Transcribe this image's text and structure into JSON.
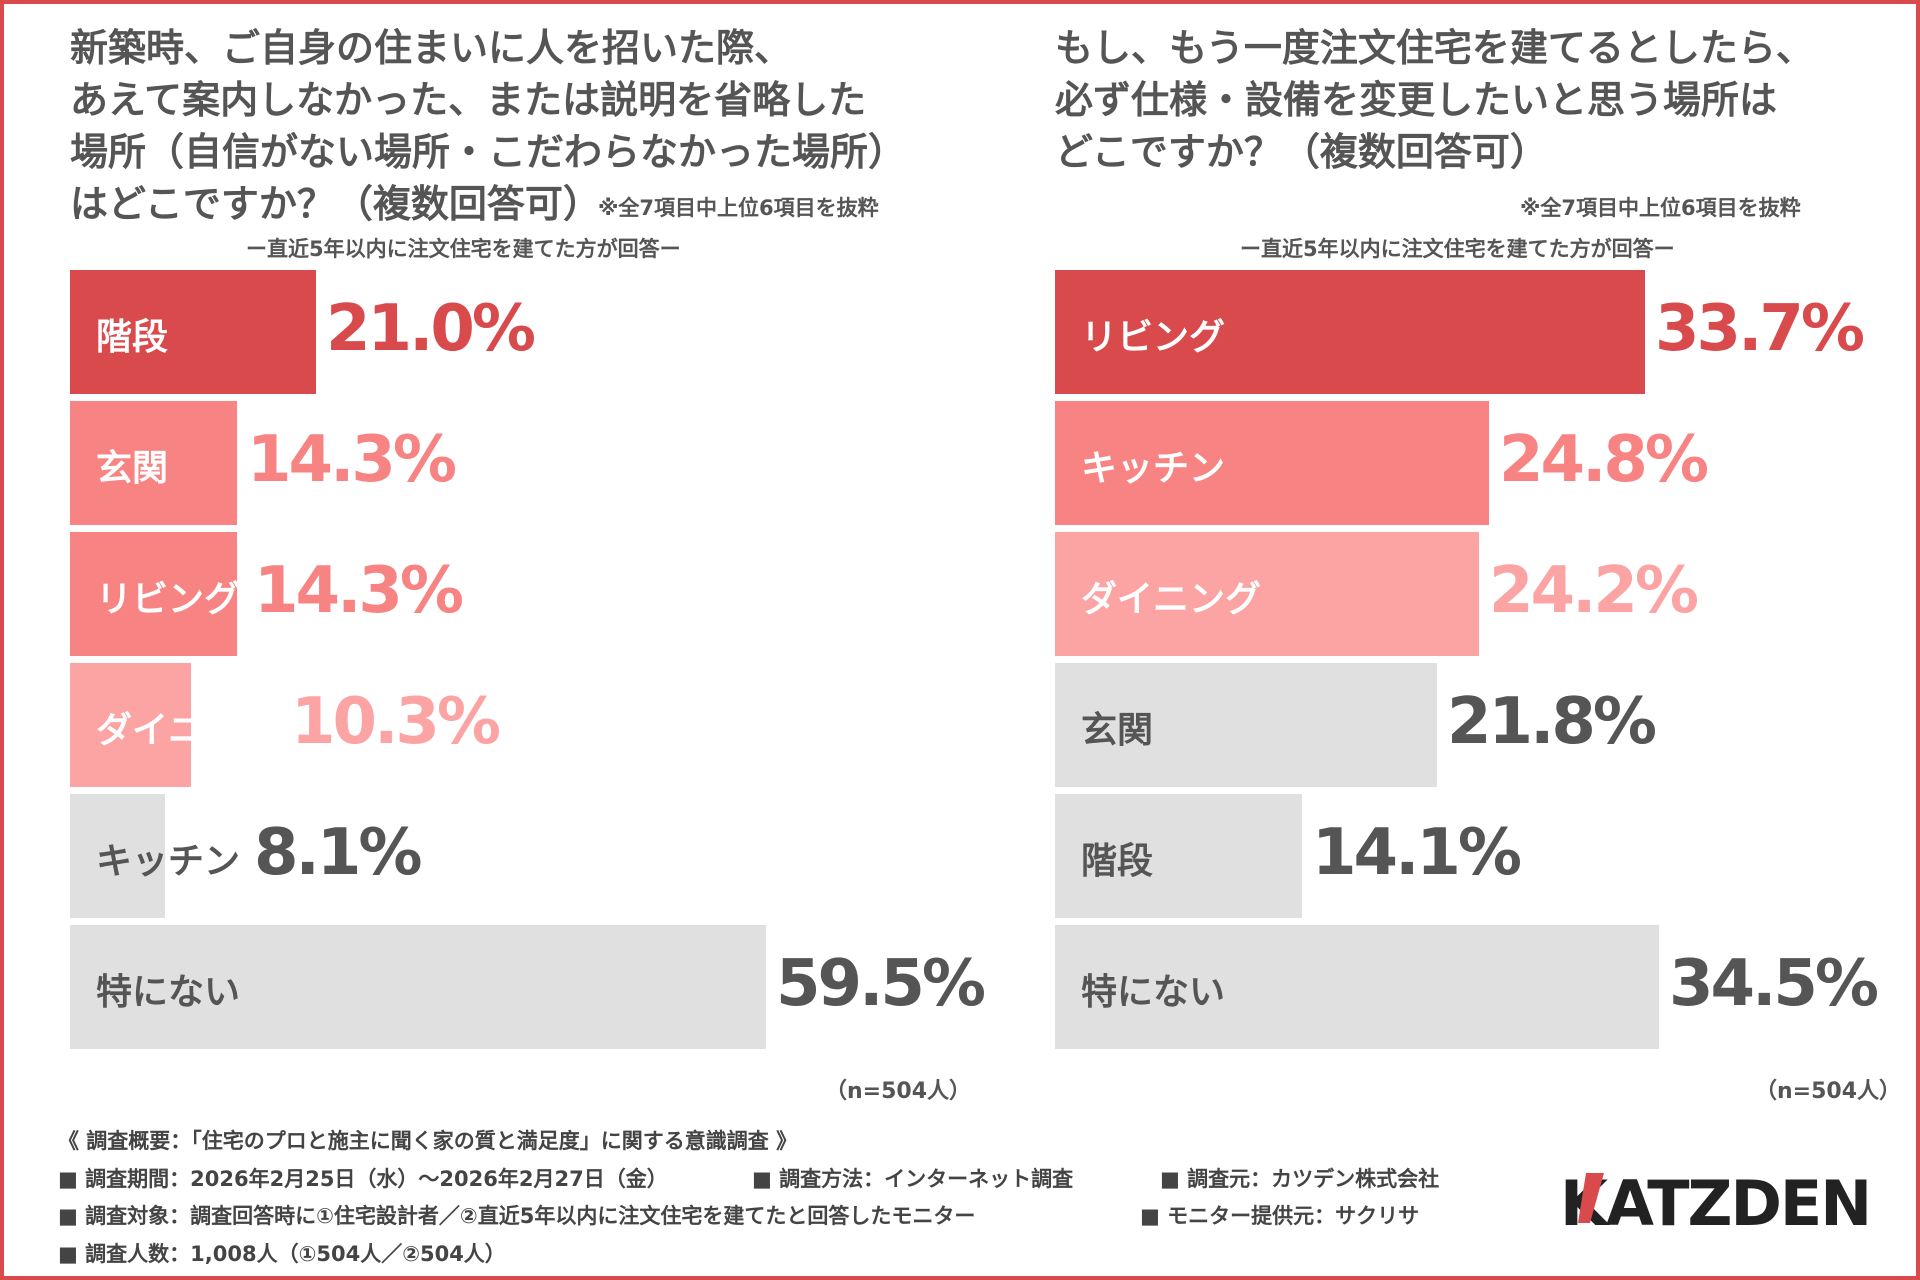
{
  "colors": {
    "border": "#d94a4d",
    "rank1": "#d94a4d",
    "rank2": "#f88383",
    "rank3": "#fca4a4",
    "gray_bar": "#e0e0e0",
    "gray_text": "#555555"
  },
  "left_panel": {
    "title": "新築時、ご自身の住まいに人を招いた際、\nあえて案内しなかった、または説明を省略した\n場所（自信がない場所・こだわらなかった場所）\nはどこですか？（複数回答可）",
    "note": "※全7項目中上位6項目を抜粋",
    "subtitle": "ー直近5年以内に注文住宅を建てた方が回答ー",
    "n": "（n=504人）"
  },
  "right_panel": {
    "title": "もし、もう一度注文住宅を建てるとしたら、\n必ず仕様・設備を変更したいと思う場所は\nどこですか？（複数回答可）",
    "note": "※全7項目中上位6項目を抜粋",
    "subtitle": "ー直近5年以内に注文住宅を建てた方が回答ー",
    "n": "（n=504人）"
  },
  "chart_data": [
    {
      "type": "bar",
      "orientation": "horizontal",
      "categories": [
        "階段",
        "玄関",
        "リビング",
        "ダイニング",
        "キッチン",
        "特にない"
      ],
      "values": [
        21.0,
        14.3,
        14.3,
        10.3,
        8.1,
        59.5
      ],
      "value_labels": [
        "21.0%",
        "14.3%",
        "14.3%",
        "10.3%",
        "8.1%",
        "59.5%"
      ],
      "bar_colors": [
        "#d94a4d",
        "#f88383",
        "#f88383",
        "#fca4a4",
        "#e0e0e0",
        "#e0e0e0"
      ],
      "value_colors": [
        "#d94a4d",
        "#f88383",
        "#f88383",
        "#fca4a4",
        "#555555",
        "#555555"
      ],
      "label_colors": [
        "#ffffff",
        "#ffffff",
        "#ffffff",
        "#ffffff",
        "#555555",
        "#555555"
      ]
    },
    {
      "type": "bar",
      "orientation": "horizontal",
      "categories": [
        "リビング",
        "キッチン",
        "ダイニング",
        "玄関",
        "階段",
        "特にない"
      ],
      "values": [
        33.7,
        24.8,
        24.2,
        21.8,
        14.1,
        34.5
      ],
      "value_labels": [
        "33.7%",
        "24.8%",
        "24.2%",
        "21.8%",
        "14.1%",
        "34.5%"
      ],
      "bar_colors": [
        "#d94a4d",
        "#f88383",
        "#fca4a4",
        "#e0e0e0",
        "#e0e0e0",
        "#e0e0e0"
      ],
      "value_colors": [
        "#d94a4d",
        "#f88383",
        "#fca4a4",
        "#555555",
        "#555555",
        "#555555"
      ],
      "label_colors": [
        "#ffffff",
        "#ffffff",
        "#ffffff",
        "#555555",
        "#555555",
        "#555555"
      ]
    }
  ],
  "footer": {
    "heading": "《 調査概要：「住宅のプロと施主に聞く家の質と満足度」に関する意識調査 》",
    "period": "■ 調査期間：2026年2月25日（水）〜2026年2月27日（金）",
    "method": "■ 調査方法：インターネット調査",
    "source": "■ 調査元：カツデン株式会社",
    "target": "■ 調査対象：調査回答時に①住宅設計者／②直近5年以内に注文住宅を建てたと回答したモニター",
    "provider": "■ モニター提供元：サクリサ",
    "count": "■ 調査人数：1,008人（①504人／②504人）"
  },
  "logo": {
    "text": "KATZDEN",
    "accent_color": "#d94a4d",
    "text_color": "#222222"
  }
}
